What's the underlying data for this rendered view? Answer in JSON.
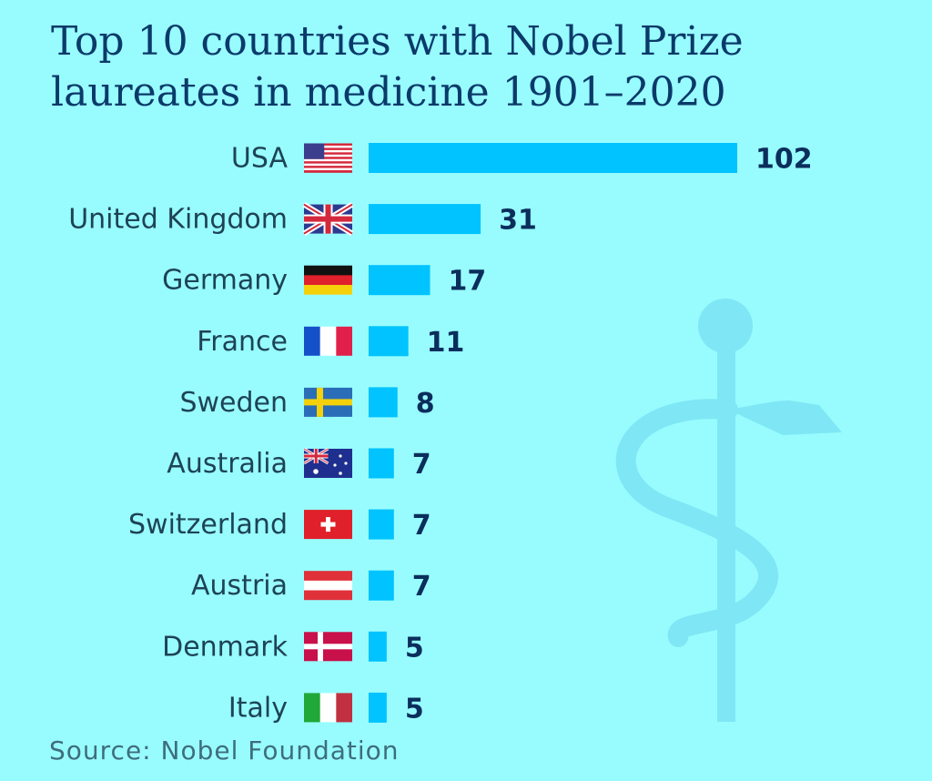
{
  "title": "Top 10 countries with Nobel Prize laureates in medicine 1901–2020",
  "source": "Source: Nobel Foundation",
  "colors": {
    "background": "#98FCFE",
    "bar": "#00C3FF",
    "title": "#0B3A6A",
    "value_text": "#0B2E5C",
    "label_text": "#1E4356",
    "watermark": "#7FE6F5"
  },
  "chart_data": {
    "type": "bar",
    "orientation": "horizontal",
    "title": "Top 10 countries with Nobel Prize laureates in medicine 1901–2020",
    "categories": [
      "USA",
      "United Kingdom",
      "Germany",
      "France",
      "Sweden",
      "Australia",
      "Switzerland",
      "Austria",
      "Denmark",
      "Italy"
    ],
    "values": [
      102,
      31,
      17,
      11,
      8,
      7,
      7,
      7,
      5,
      5
    ],
    "flag_icons": [
      "usa-flag-icon",
      "uk-flag-icon",
      "germany-flag-icon",
      "france-flag-icon",
      "sweden-flag-icon",
      "australia-flag-icon",
      "switzerland-flag-icon",
      "austria-flag-icon",
      "denmark-flag-icon",
      "italy-flag-icon"
    ],
    "xlabel": "",
    "ylabel": "",
    "xlim": [
      0,
      102
    ],
    "grid": false,
    "legend": "none",
    "data_labels": true
  },
  "decoration": {
    "watermark_icon": "rod-of-asclepius-icon"
  }
}
